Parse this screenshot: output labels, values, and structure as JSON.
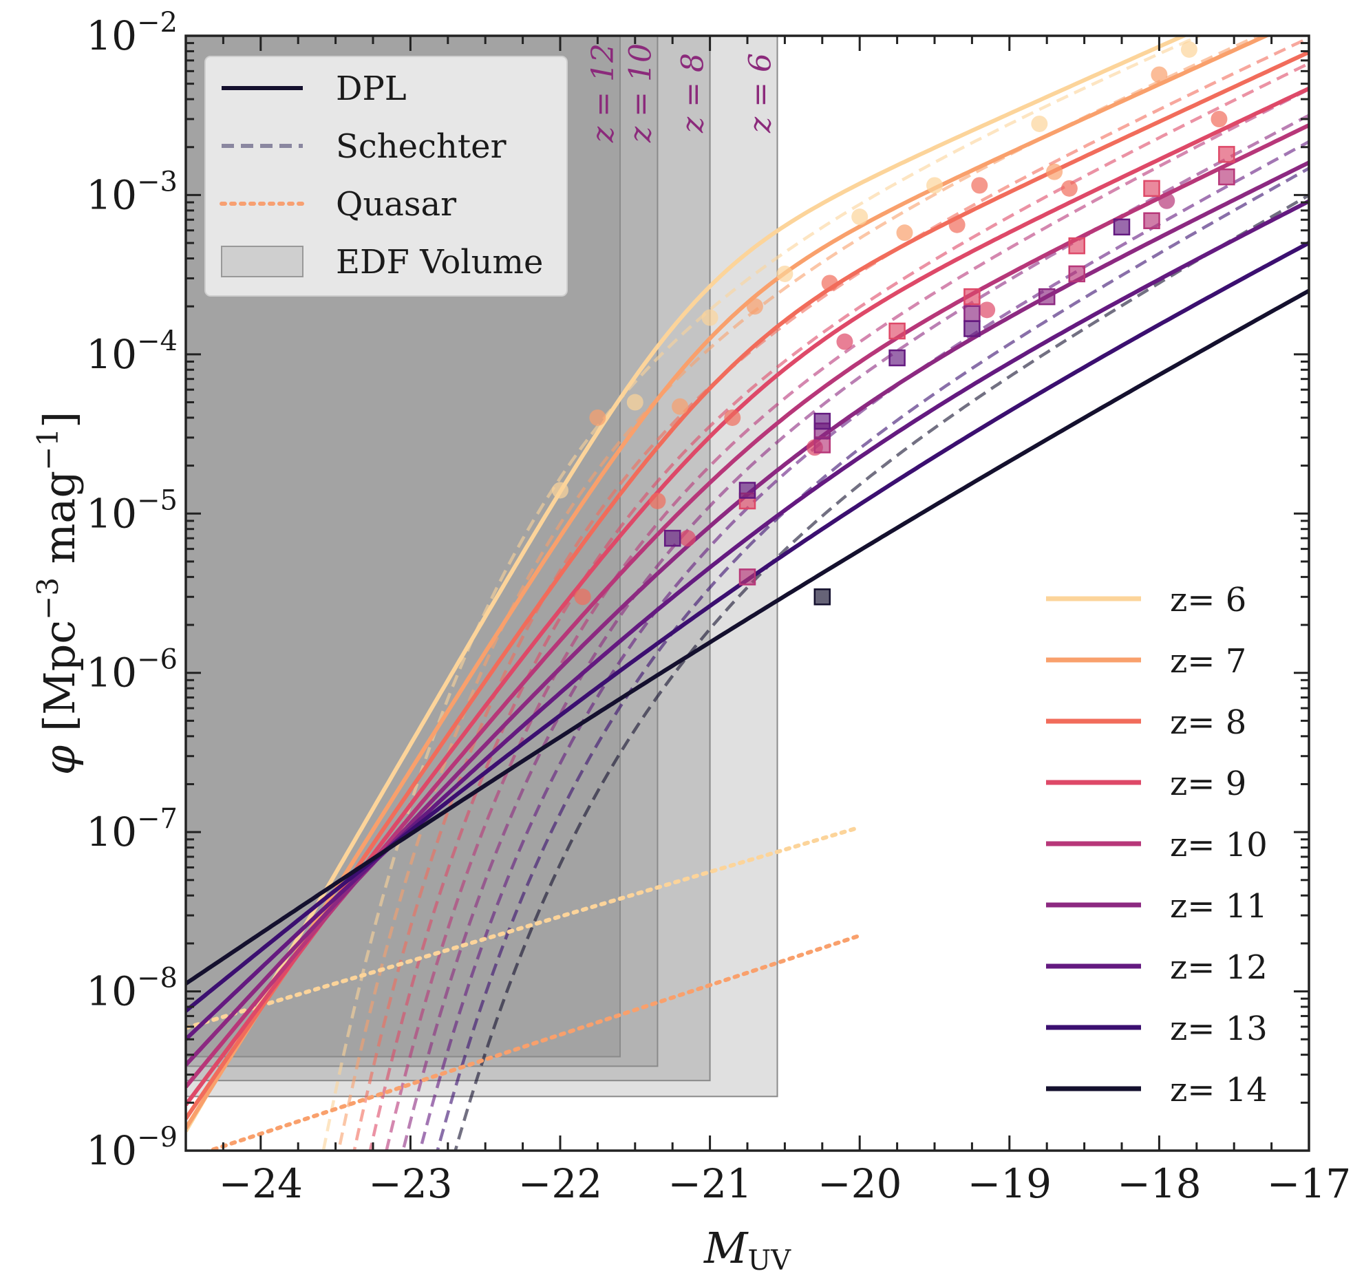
{
  "chart_data": {
    "type": "line",
    "xlabel": "M_UV",
    "ylabel": "φ [Mpc^-3 mag^-1]",
    "xlim": [
      -24.5,
      -17
    ],
    "ylim_log10": [
      -9,
      -2
    ],
    "y_scale": "log",
    "x_ticks": [
      -24,
      -23,
      -22,
      -21,
      -20,
      -19,
      -18,
      -17
    ],
    "y_ticks": [
      {
        "exp": -9,
        "label_base": "10",
        "label_exp": "−9"
      },
      {
        "exp": -8,
        "label_base": "10",
        "label_exp": "−8"
      },
      {
        "exp": -7,
        "label_base": "10",
        "label_exp": "−7"
      },
      {
        "exp": -6,
        "label_base": "10",
        "label_exp": "−6"
      },
      {
        "exp": -5,
        "label_base": "10",
        "label_exp": "−5"
      },
      {
        "exp": -4,
        "label_base": "10",
        "label_exp": "−4"
      },
      {
        "exp": -3,
        "label_base": "10",
        "label_exp": "−3"
      },
      {
        "exp": -2,
        "label_base": "10",
        "label_exp": "−2"
      }
    ],
    "legend_styles": {
      "placement": "top-left",
      "entries": [
        {
          "label": "DPL",
          "style": "solid",
          "color": "#14102e"
        },
        {
          "label": "Schechter",
          "style": "dashed",
          "color": "#8a87a0"
        },
        {
          "label": "Quasar",
          "style": "dotted",
          "color": "#f7a072"
        },
        {
          "label": "EDF Volume",
          "style": "box",
          "color": "#cfcfcf"
        }
      ]
    },
    "legend_redshift_placement": "bottom-right",
    "edf_volume": [
      {
        "label": "z = 6",
        "x_max": -20.55,
        "phi_min_log10": -8.66,
        "fill": "#e0e0e0"
      },
      {
        "label": "z = 8",
        "x_max": -21.0,
        "phi_min_log10": -8.56,
        "fill": "#c4c4c4"
      },
      {
        "label": "z = 10",
        "x_max": -21.35,
        "phi_min_log10": -8.47,
        "fill": "#b3b3b3"
      },
      {
        "label": "z = 12",
        "x_max": -21.6,
        "phi_min_log10": -8.41,
        "fill": "#a3a3a3"
      }
    ],
    "series": [
      {
        "name": "z= 6",
        "color": "#fcd49a",
        "dpl": {
          "log_phi_star": -3.37,
          "m_star": -21.1,
          "alpha": -2.05,
          "beta": -5.05
        },
        "schechter": {
          "log_phi_star": -3.25,
          "m_star": -21.0,
          "alpha": -2.0
        },
        "quasar": {
          "x_start": -24.5,
          "log_start": -8.23,
          "x_end": -20.0,
          "log_end": -6.97
        }
      },
      {
        "name": "z= 7",
        "color": "#f9a06c",
        "dpl": {
          "log_phi_star": -3.58,
          "m_star": -20.98,
          "alpha": -2.07,
          "beta": -4.75
        },
        "schechter": {
          "log_phi_star": -3.45,
          "m_star": -20.95,
          "alpha": -2.04
        },
        "quasar": {
          "x_start": -24.5,
          "log_start": -9.05,
          "x_end": -20.0,
          "log_end": -7.65
        }
      },
      {
        "name": "z= 8",
        "color": "#f16c5b",
        "dpl": {
          "log_phi_star": -3.79,
          "m_star": -20.87,
          "alpha": -2.09,
          "beta": -4.45
        },
        "schechter": {
          "log_phi_star": -3.65,
          "m_star": -20.9,
          "alpha": -2.08
        }
      },
      {
        "name": "z= 9",
        "color": "#de4968",
        "dpl": {
          "log_phi_star": -4.0,
          "m_star": -20.76,
          "alpha": -2.11,
          "beta": -4.15
        },
        "schechter": {
          "log_phi_star": -3.85,
          "m_star": -20.85,
          "alpha": -2.12
        }
      },
      {
        "name": "z= 10",
        "color": "#b73779",
        "dpl": {
          "log_phi_star": -4.21,
          "m_star": -20.65,
          "alpha": -2.13,
          "beta": -3.85
        },
        "schechter": {
          "log_phi_star": -4.05,
          "m_star": -20.8,
          "alpha": -2.16
        }
      },
      {
        "name": "z= 11",
        "color": "#8c2981",
        "dpl": {
          "log_phi_star": -4.42,
          "m_star": -20.54,
          "alpha": -2.15,
          "beta": -3.55
        },
        "schechter": {
          "log_phi_star": -4.25,
          "m_star": -20.75,
          "alpha": -2.2
        }
      },
      {
        "name": "z= 12",
        "color": "#641a80",
        "dpl": {
          "log_phi_star": -4.63,
          "m_star": -20.43,
          "alpha": -2.17,
          "beta": -3.25
        },
        "schechter": {
          "log_phi_star": -4.45,
          "m_star": -20.7,
          "alpha": -2.24
        }
      },
      {
        "name": "z= 13",
        "color": "#3b0f70",
        "dpl": {
          "log_phi_star": -4.84,
          "m_star": -20.32,
          "alpha": -2.19,
          "beta": -2.95
        },
        "schechter": {
          "log_phi_star": -4.65,
          "m_star": -20.65,
          "alpha": -2.28
        }
      },
      {
        "name": "z= 14",
        "color": "#14102e",
        "dpl": {
          "log_phi_star": -5.05,
          "m_star": -20.21,
          "alpha": -2.21,
          "beta": -2.65
        },
        "schechter": {
          "log_phi_star": -4.85,
          "m_star": -20.6,
          "alpha": -2.32
        }
      }
    ],
    "observations": [
      {
        "marker": "circle",
        "color": "#fcd49a",
        "x": -22.0,
        "y": 1.4e-05
      },
      {
        "marker": "circle",
        "color": "#fcd49a",
        "x": -21.5,
        "y": 5e-05
      },
      {
        "marker": "circle",
        "color": "#fcd49a",
        "x": -21.0,
        "y": 0.00017
      },
      {
        "marker": "circle",
        "color": "#fcd49a",
        "x": -20.5,
        "y": 0.00032
      },
      {
        "marker": "circle",
        "color": "#fcd49a",
        "x": -20.0,
        "y": 0.00073
      },
      {
        "marker": "circle",
        "color": "#fcd49a",
        "x": -19.5,
        "y": 0.00115
      },
      {
        "marker": "circle",
        "color": "#fcd49a",
        "x": -18.8,
        "y": 0.0028
      },
      {
        "marker": "circle",
        "color": "#fcd49a",
        "x": -17.8,
        "y": 0.0082
      },
      {
        "marker": "circle",
        "color": "#f9a06c",
        "x": -21.75,
        "y": 4e-05
      },
      {
        "marker": "circle",
        "color": "#f9a06c",
        "x": -21.2,
        "y": 4.7e-05
      },
      {
        "marker": "circle",
        "color": "#f9a06c",
        "x": -20.7,
        "y": 0.0002
      },
      {
        "marker": "circle",
        "color": "#f9a06c",
        "x": -19.7,
        "y": 0.00058
      },
      {
        "marker": "circle",
        "color": "#f9a06c",
        "x": -18.7,
        "y": 0.0014
      },
      {
        "marker": "circle",
        "color": "#f9a06c",
        "x": -18.0,
        "y": 0.0057
      },
      {
        "marker": "circle",
        "color": "#f16c5b",
        "x": -21.85,
        "y": 3e-06
      },
      {
        "marker": "circle",
        "color": "#f16c5b",
        "x": -21.35,
        "y": 1.2e-05
      },
      {
        "marker": "circle",
        "color": "#f16c5b",
        "x": -20.85,
        "y": 4e-05
      },
      {
        "marker": "circle",
        "color": "#f16c5b",
        "x": -20.2,
        "y": 0.00028
      },
      {
        "marker": "circle",
        "color": "#f16c5b",
        "x": -19.35,
        "y": 0.00065
      },
      {
        "marker": "circle",
        "color": "#f16c5b",
        "x": -19.2,
        "y": 0.00115
      },
      {
        "marker": "circle",
        "color": "#f16c5b",
        "x": -18.6,
        "y": 0.0011
      },
      {
        "marker": "circle",
        "color": "#f16c5b",
        "x": -17.6,
        "y": 0.003
      },
      {
        "marker": "circle",
        "color": "#de4968",
        "x": -21.15,
        "y": 7e-06
      },
      {
        "marker": "circle",
        "color": "#de4968",
        "x": -20.1,
        "y": 0.00012
      },
      {
        "marker": "circle",
        "color": "#de4968",
        "x": -20.3,
        "y": 2.6e-05
      },
      {
        "marker": "circle",
        "color": "#de4968",
        "x": -19.15,
        "y": 0.00019
      },
      {
        "marker": "circle",
        "color": "#b73779",
        "x": -17.95,
        "y": 0.00092
      },
      {
        "marker": "square",
        "color": "#de4968",
        "x": -20.75,
        "y": 1.2e-05
      },
      {
        "marker": "square",
        "color": "#de4968",
        "x": -19.75,
        "y": 0.00014
      },
      {
        "marker": "square",
        "color": "#de4968",
        "x": -19.25,
        "y": 0.00023
      },
      {
        "marker": "square",
        "color": "#de4968",
        "x": -18.55,
        "y": 0.00048
      },
      {
        "marker": "square",
        "color": "#de4968",
        "x": -18.05,
        "y": 0.0011
      },
      {
        "marker": "square",
        "color": "#de4968",
        "x": -17.55,
        "y": 0.0018
      },
      {
        "marker": "square",
        "color": "#b73779",
        "x": -20.75,
        "y": 4e-06
      },
      {
        "marker": "square",
        "color": "#b73779",
        "x": -20.25,
        "y": 2.7e-05
      },
      {
        "marker": "square",
        "color": "#b73779",
        "x": -18.55,
        "y": 0.00032
      },
      {
        "marker": "square",
        "color": "#b73779",
        "x": -18.05,
        "y": 0.00069
      },
      {
        "marker": "square",
        "color": "#b73779",
        "x": -17.55,
        "y": 0.0013
      },
      {
        "marker": "square",
        "color": "#8c2981",
        "x": -20.25,
        "y": 3.3e-05
      },
      {
        "marker": "square",
        "color": "#8c2981",
        "x": -19.25,
        "y": 0.00018
      },
      {
        "marker": "square",
        "color": "#8c2981",
        "x": -18.75,
        "y": 0.00023
      },
      {
        "marker": "square",
        "color": "#641a80",
        "x": -21.25,
        "y": 7e-06
      },
      {
        "marker": "square",
        "color": "#641a80",
        "x": -20.75,
        "y": 1.4e-05
      },
      {
        "marker": "square",
        "color": "#641a80",
        "x": -20.25,
        "y": 3.8e-05
      },
      {
        "marker": "square",
        "color": "#641a80",
        "x": -19.75,
        "y": 9.5e-05
      },
      {
        "marker": "square",
        "color": "#641a80",
        "x": -19.25,
        "y": 0.000145
      },
      {
        "marker": "square",
        "color": "#641a80",
        "x": -18.25,
        "y": 0.00063
      },
      {
        "marker": "square",
        "color": "#14102e",
        "x": -20.25,
        "y": 3e-06
      }
    ]
  }
}
